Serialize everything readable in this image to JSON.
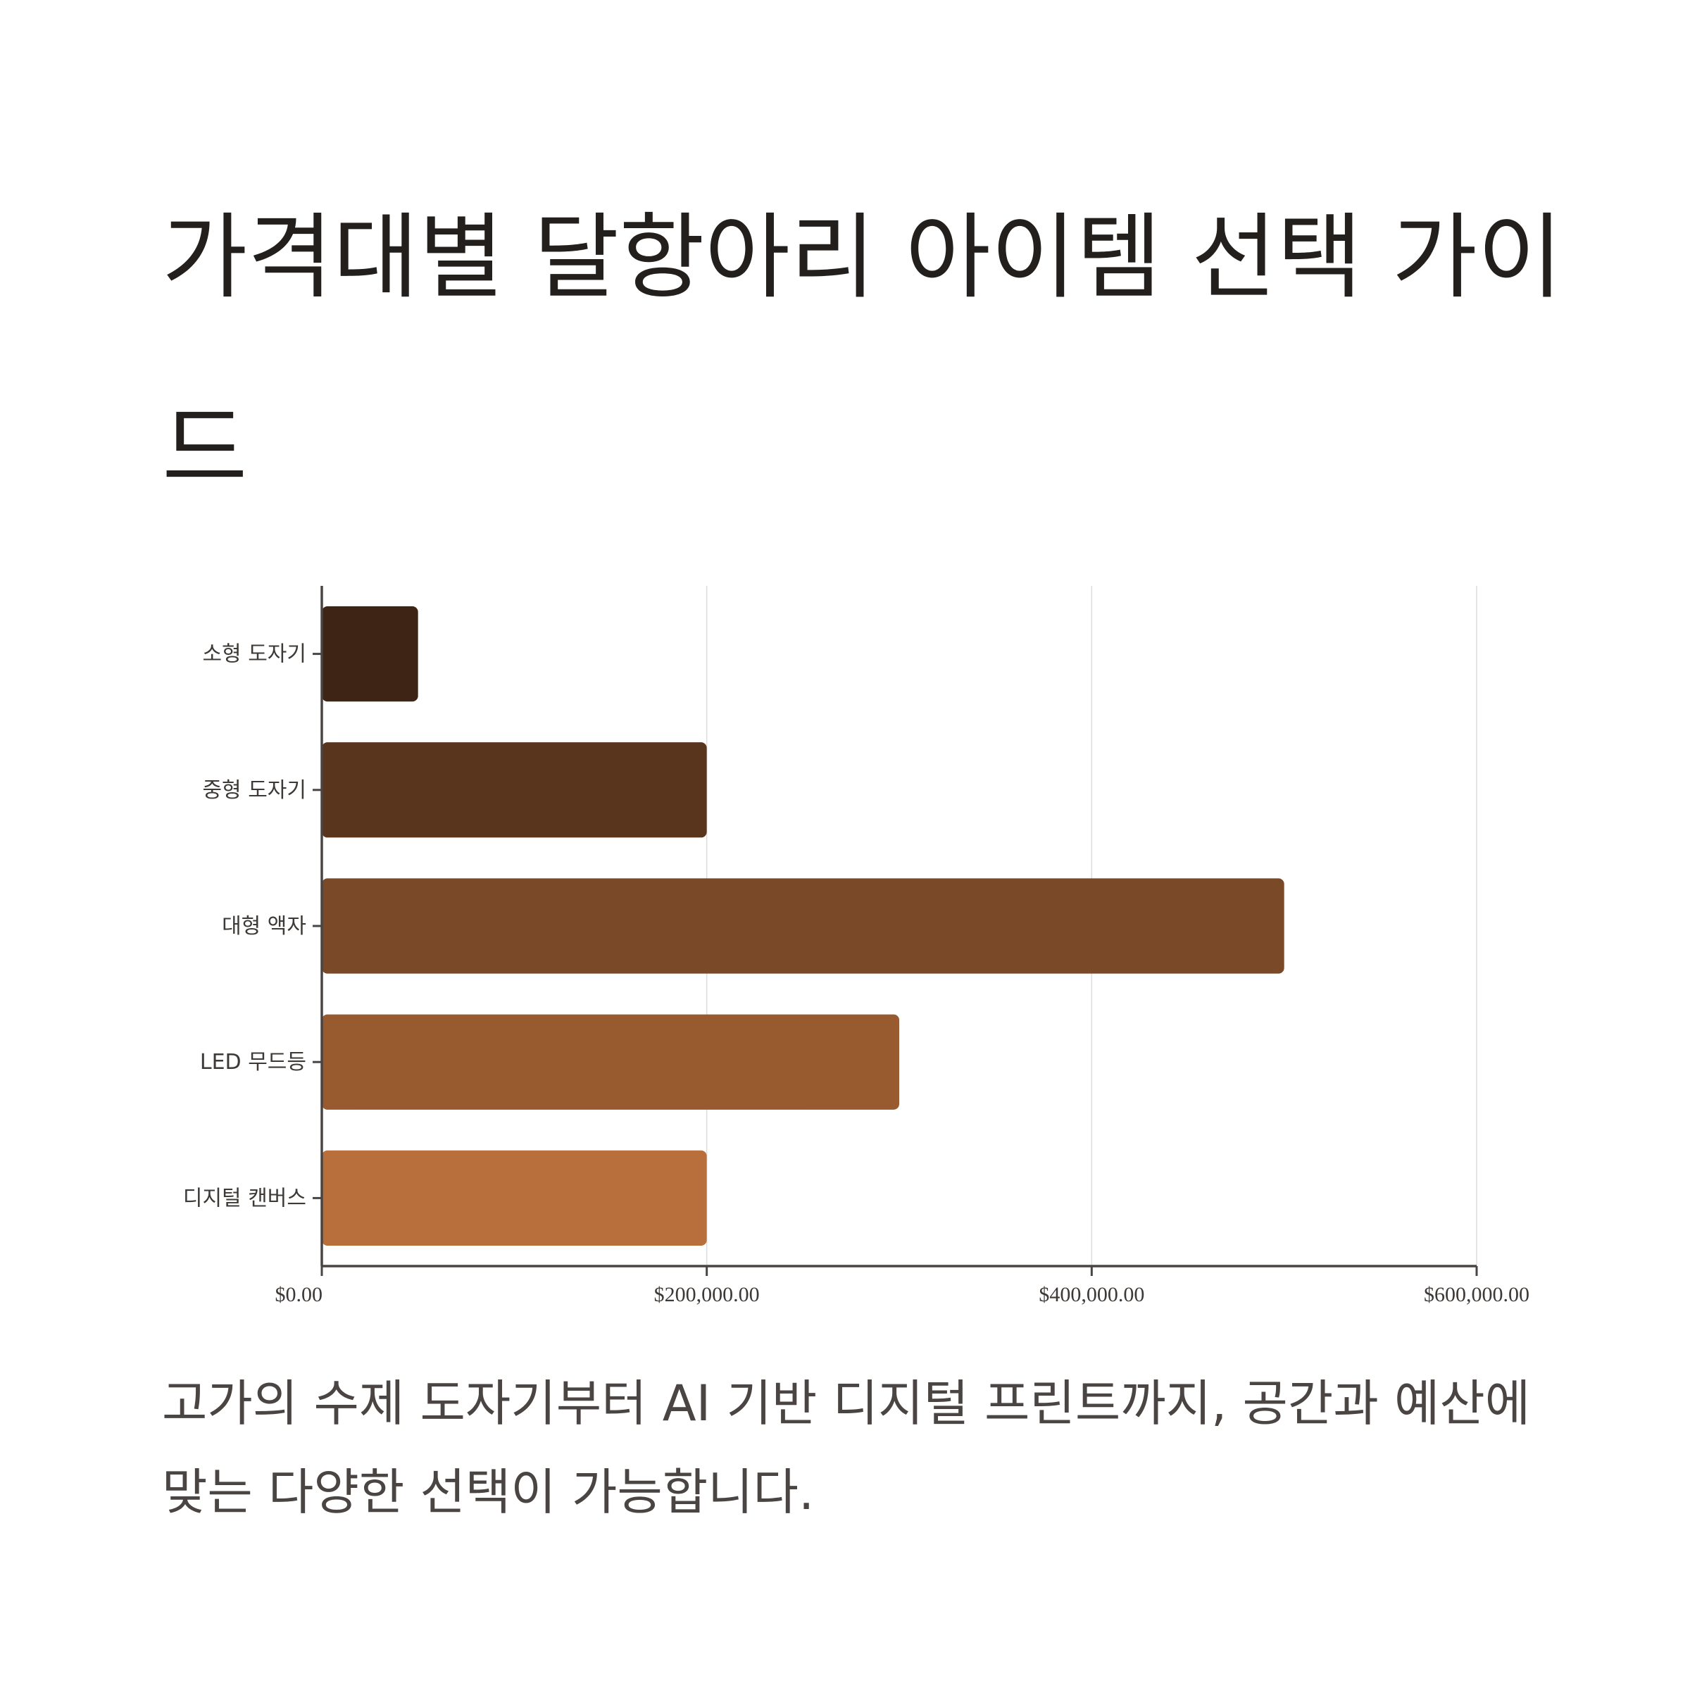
{
  "title": "가격대별 달항아리 아이템 선택 가이드",
  "caption": "고가의 수제 도자기부터 AI 기반 디지털 프린트까지, 공간과 예산에 맞는 다양한 선택이 가능합니다.",
  "chart_data": {
    "type": "bar",
    "orientation": "horizontal",
    "categories": [
      "소형 도자기",
      "중형 도자기",
      "대형 액자",
      "LED 무드등",
      "디지털 캔버스"
    ],
    "values": [
      50000,
      200000,
      500000,
      300000,
      200000
    ],
    "colors": [
      "#3d2415",
      "#5a351e",
      "#7a4a28",
      "#985b30",
      "#b86f3b"
    ],
    "xlim": [
      0,
      600000
    ],
    "xticks": [
      0,
      200000,
      400000,
      600000
    ],
    "xtick_labels": [
      "$0.00",
      "$200,000.00",
      "$400,000.00",
      "$600,000.00"
    ],
    "grid": true,
    "xlabel": "",
    "ylabel": ""
  }
}
